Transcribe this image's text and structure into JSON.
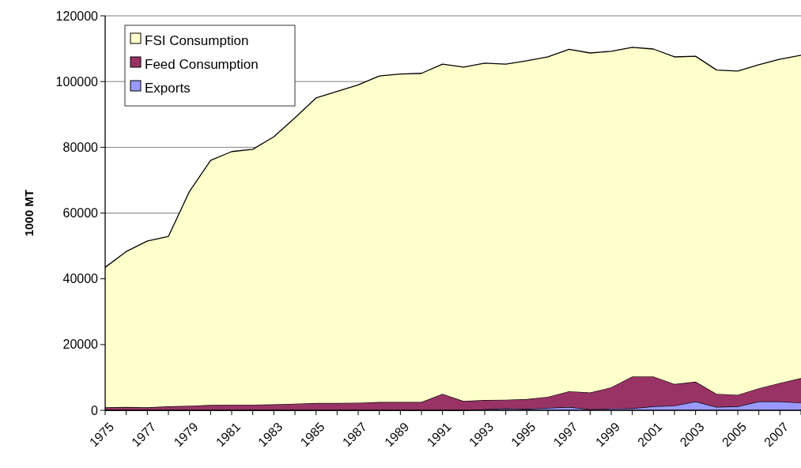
{
  "chart_data": {
    "type": "area",
    "stacked": true,
    "ylabel": "1000 MT",
    "x": [
      1975,
      1976,
      1977,
      1978,
      1979,
      1980,
      1981,
      1982,
      1983,
      1984,
      1985,
      1986,
      1987,
      1988,
      1989,
      1990,
      1991,
      1992,
      1993,
      1994,
      1995,
      1996,
      1997,
      1998,
      1999,
      2000,
      2001,
      2002,
      2003,
      2004,
      2005,
      2006,
      2007,
      2008
    ],
    "series": [
      {
        "name": "Exports",
        "color": "#9999ff",
        "values": [
          0,
          0,
          0,
          0,
          0,
          0,
          0,
          0,
          0,
          0,
          0,
          0,
          0,
          0,
          0,
          0,
          0,
          0,
          300,
          600,
          400,
          700,
          1000,
          300,
          500,
          600,
          1200,
          1400,
          2700,
          1000,
          1200,
          2700,
          2700,
          2300
        ]
      },
      {
        "name": "Feed Consumption",
        "color": "#993366",
        "values": [
          900,
          1000,
          900,
          1200,
          1400,
          1600,
          1700,
          1700,
          1800,
          2000,
          2200,
          2200,
          2300,
          2500,
          2500,
          2500,
          5000,
          2800,
          2800,
          2600,
          3000,
          3400,
          4800,
          5100,
          6500,
          9700,
          9100,
          6600,
          6000,
          4000,
          3500,
          4000,
          5600,
          7500
        ]
      },
      {
        "name": "FSI Consumption",
        "color": "#ffffcc",
        "values": [
          42600,
          47300,
          50600,
          51700,
          65200,
          74400,
          77000,
          77700,
          81400,
          87000,
          92800,
          94800,
          96700,
          99200,
          99800,
          100000,
          100300,
          101600,
          102500,
          102100,
          102900,
          103400,
          104000,
          103300,
          102200,
          100100,
          99600,
          99500,
          99000,
          98500,
          98500,
          98400,
          98500,
          98200
        ]
      }
    ],
    "xlim": [
      1975,
      2008
    ],
    "xticks": [
      1975,
      {
        "value": 1976,
        "label": null
      },
      1977,
      {
        "value": 1978,
        "label": null
      },
      1979,
      {
        "value": 1980,
        "label": null
      },
      1981,
      {
        "value": 1982,
        "label": null
      },
      1983,
      {
        "value": 1984,
        "label": null
      },
      1985,
      {
        "value": 1986,
        "label": null
      },
      1987,
      {
        "value": 1988,
        "label": null
      },
      1989,
      {
        "value": 1990,
        "label": null
      },
      1991,
      {
        "value": 1992,
        "label": null
      },
      1993,
      {
        "value": 1994,
        "label": null
      },
      1995,
      {
        "value": 1996,
        "label": null
      },
      1997,
      {
        "value": 1998,
        "label": null
      },
      1999,
      {
        "value": 2000,
        "label": null
      },
      2001,
      {
        "value": 2002,
        "label": null
      },
      2003,
      {
        "value": 2004,
        "label": null
      },
      2005,
      {
        "value": 2006,
        "label": null
      },
      2007,
      {
        "value": 2008,
        "label": null
      }
    ],
    "ylim": [
      0,
      120000
    ],
    "yticks": [
      0,
      20000,
      40000,
      60000,
      80000,
      100000,
      120000
    ],
    "grid": "y",
    "legend": "top left"
  }
}
